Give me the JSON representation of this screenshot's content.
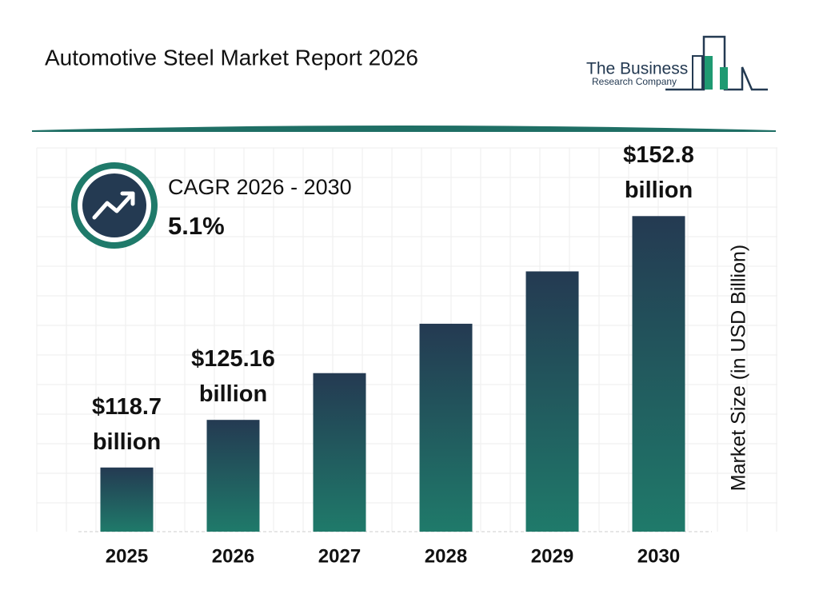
{
  "chart_data": {
    "type": "bar",
    "title": "Automotive Steel Market Report 2026",
    "logo": {
      "line1": "The Business",
      "line2": "Research Company"
    },
    "cagr": {
      "label": "CAGR 2026 - 2030",
      "value": "5.1%"
    },
    "y_axis_label": "Market Size (in USD Billion)",
    "categories": [
      "2025",
      "2026",
      "2027",
      "2028",
      "2029",
      "2030"
    ],
    "values": [
      118.7,
      125.16,
      131.5,
      138.2,
      145.3,
      152.8
    ],
    "value_labels": [
      "$118.7 billion",
      "$125.16 billion",
      null,
      null,
      null,
      "$152.8 billion"
    ],
    "color_top": "#243a52",
    "color_bottom": "#1f7a6a",
    "ylim": [
      110,
      155
    ]
  }
}
